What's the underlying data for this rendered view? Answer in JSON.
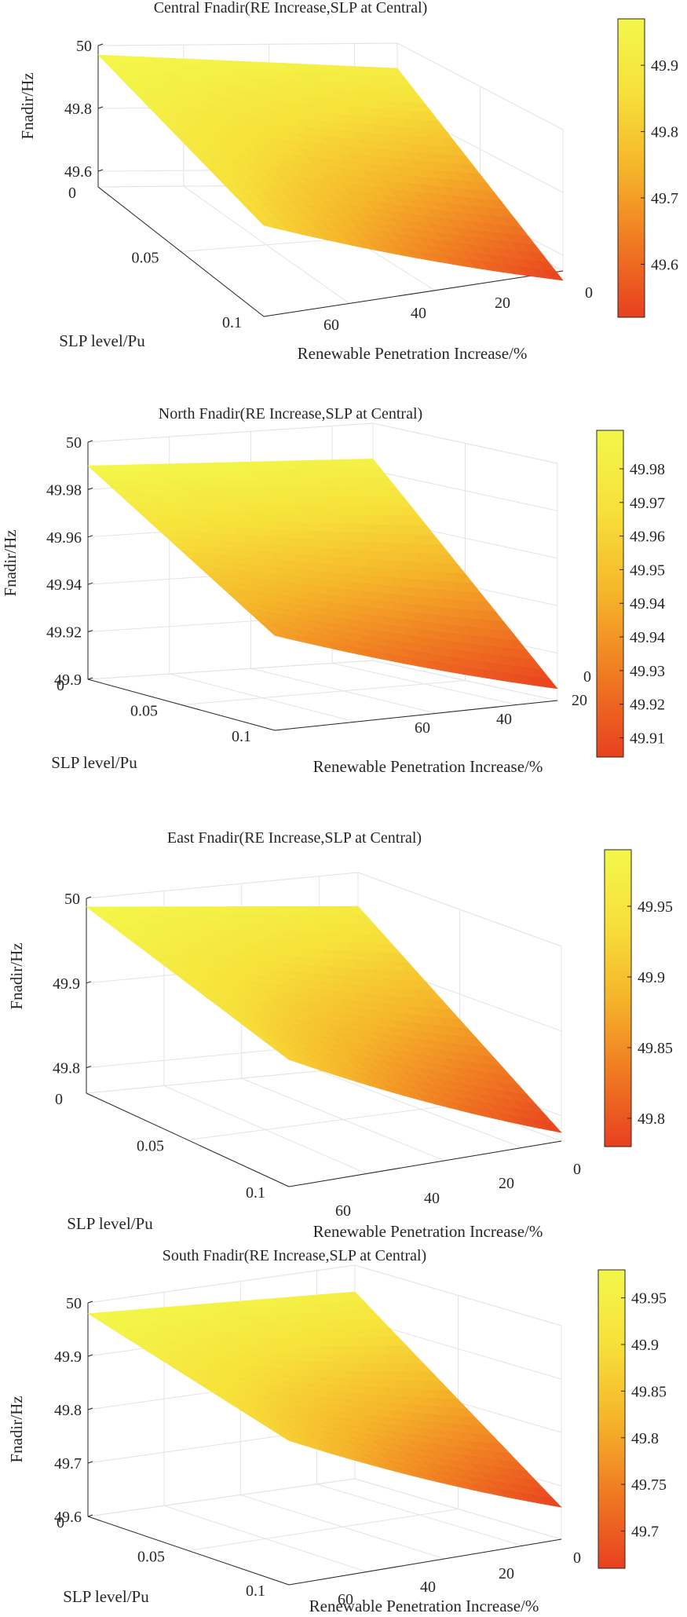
{
  "figure": {
    "colormap": [
      "#e8401f",
      "#f07a22",
      "#f5b52a",
      "#f7e03a",
      "#f3f74a"
    ]
  },
  "chart_data": [
    {
      "type": "surface",
      "title": "Central Fnadir(RE Increase,SLP at Central)",
      "xlabel": "Renewable Penetration Increase/%",
      "ylabel": "SLP level/Pu",
      "zlabel": "Fnadir/Hz",
      "x_ticks": [
        "0",
        "20",
        "40",
        "60"
      ],
      "y_ticks": [
        "0",
        "0.05",
        "0.1"
      ],
      "z_ticks": [
        "49.6",
        "49.8",
        "50"
      ],
      "colorbar_ticks": [
        "49.6",
        "49.7",
        "49.8",
        "49.9"
      ],
      "xlim": [
        0,
        70
      ],
      "ylim": [
        0,
        0.1
      ],
      "zlim": [
        49.5,
        50
      ],
      "clim": [
        49.52,
        49.97
      ],
      "corner_values": {
        "x0_y0": 49.97,
        "x70_y0": 49.92,
        "x0_y0.1": 49.84,
        "x70_y0.1": 49.52
      },
      "grid": true
    },
    {
      "type": "surface",
      "title": "North Fnadir(RE Increase,SLP at Central)",
      "xlabel": "Renewable Penetration Increase/%",
      "ylabel": "SLP level/Pu",
      "zlabel": "Fnadir/Hz",
      "x_ticks": [
        "20",
        "40",
        "60"
      ],
      "x_extra_tick": "0",
      "y_ticks": [
        "0",
        "0.05",
        "0.1"
      ],
      "z_ticks": [
        "49.9",
        "49.92",
        "49.94",
        "49.96",
        "49.98",
        "50"
      ],
      "colorbar_ticks": [
        "49.91",
        "49.92",
        "49.93",
        "49.94",
        "49.94",
        "49.95",
        "49.96",
        "49.97",
        "49.98"
      ],
      "xlim": [
        0,
        70
      ],
      "ylim": [
        0,
        0.1
      ],
      "zlim": [
        49.9,
        50
      ],
      "clim": [
        49.905,
        49.99
      ],
      "corner_values": {
        "x0_y0": 49.99,
        "x70_y0": 49.985,
        "x0_y0.1": 49.94,
        "x70_y0.1": 49.905
      },
      "grid": true
    },
    {
      "type": "surface",
      "title": "East Fnadir(RE Increase,SLP at Central)",
      "xlabel": "Renewable Penetration Increase/%",
      "ylabel": "SLP level/Pu",
      "zlabel": "Fnadir/Hz",
      "x_ticks": [
        "0",
        "20",
        "40",
        "60"
      ],
      "y_ticks": [
        "0",
        "0.05",
        "0.1"
      ],
      "z_ticks": [
        "49.8",
        "49.9",
        "50"
      ],
      "colorbar_ticks": [
        "49.8",
        "49.85",
        "49.9",
        "49.95"
      ],
      "xlim": [
        0,
        70
      ],
      "ylim": [
        0,
        0.1
      ],
      "zlim": [
        49.75,
        50
      ],
      "clim": [
        49.78,
        49.99
      ],
      "corner_values": {
        "x0_y0": 49.99,
        "x70_y0": 49.96,
        "x0_y0.1": 49.92,
        "x70_y0.1": 49.78
      },
      "grid": true
    },
    {
      "type": "surface",
      "title": "South Fnadir(RE Increase,SLP at Central)",
      "xlabel": "Renewable Penetration Increase/%",
      "ylabel": "SLP level/Pu",
      "zlabel": "Fnadir/Hz",
      "x_ticks": [
        "0",
        "20",
        "40",
        "60"
      ],
      "y_ticks": [
        "0",
        "0.05",
        "0.1"
      ],
      "z_ticks": [
        "49.6",
        "49.7",
        "49.8",
        "49.9",
        "50"
      ],
      "colorbar_ticks": [
        "49.7",
        "49.75",
        "49.8",
        "49.85",
        "49.9",
        "49.95"
      ],
      "xlim": [
        0,
        70
      ],
      "ylim": [
        0,
        0.1
      ],
      "zlim": [
        49.6,
        50
      ],
      "clim": [
        49.66,
        49.98
      ],
      "corner_values": {
        "x0_y0": 49.98,
        "x70_y0": 49.95,
        "x0_y0.1": 49.87,
        "x70_y0.1": 49.66
      },
      "grid": true
    }
  ]
}
